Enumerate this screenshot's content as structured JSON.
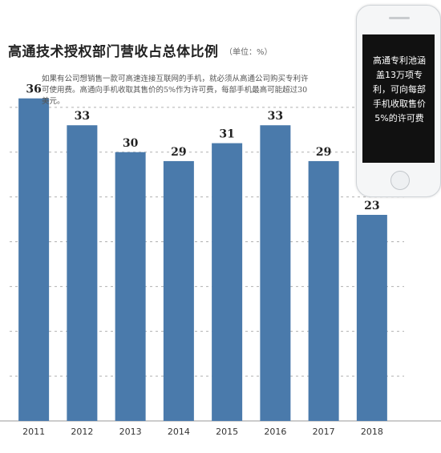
{
  "chart_data": {
    "type": "bar",
    "title": "高通技术授权部门营收占总体比例",
    "unit": "（单位：%）",
    "note": "如果有公司想销售一款可高速连接互联网的手机，就必须从高通公司购买专利许可使用费。高通向手机收取其售价的5%作为许可费，每部手机最高可能超过30美元。",
    "categories": [
      "2011",
      "2012",
      "2013",
      "2014",
      "2015",
      "2016",
      "2017",
      "2018"
    ],
    "values": [
      36,
      33,
      30,
      29,
      31,
      33,
      29,
      23
    ],
    "ylim": [
      0,
      40
    ],
    "grid": "dashed horizontal",
    "bar_color": "#4a7aab"
  },
  "phone": {
    "text": "高通专利池涵盖13万项专利，可向每部手机收取售价5%的许可费"
  }
}
